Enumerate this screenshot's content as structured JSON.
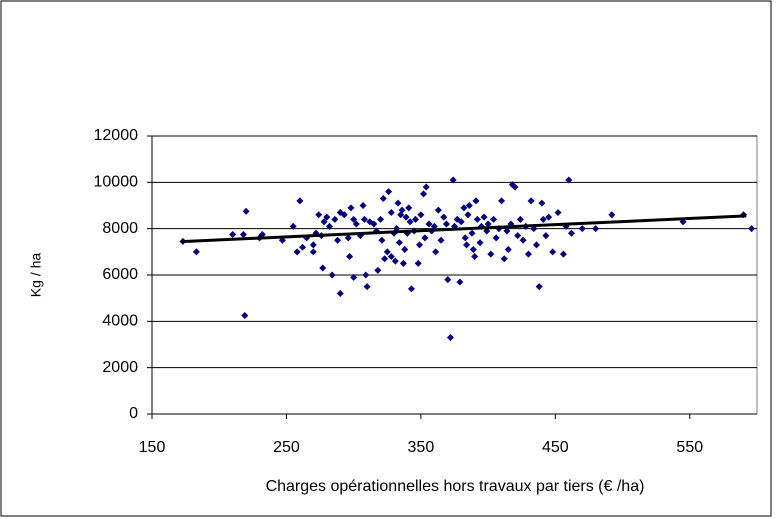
{
  "chart_data": {
    "type": "scatter",
    "xlabel": "Charges opérationnelles hors travaux par tiers (€ /ha)",
    "ylabel": "Kg / ha",
    "xlim": [
      150,
      600
    ],
    "xticks": [
      150,
      250,
      350,
      450,
      550
    ],
    "ylim": [
      0,
      12000
    ],
    "yticks": [
      0,
      2000,
      4000,
      6000,
      8000,
      10000,
      12000
    ],
    "grid": true,
    "color": "#000080",
    "x": [
      173,
      183,
      210,
      218,
      220,
      219,
      230,
      232,
      247,
      255,
      258,
      260,
      262,
      265,
      270,
      270,
      272,
      274,
      276,
      277,
      278,
      280,
      282,
      284,
      286,
      288,
      290,
      290,
      293,
      296,
      297,
      298,
      300,
      300,
      302,
      305,
      307,
      308,
      309,
      310,
      312,
      315,
      317,
      318,
      320,
      321,
      322,
      323,
      325,
      326,
      328,
      328,
      330,
      331,
      332,
      333,
      334,
      335,
      336,
      337,
      338,
      339,
      340,
      341,
      342,
      343,
      345,
      346,
      348,
      349,
      350,
      352,
      353,
      354,
      356,
      358,
      360,
      361,
      363,
      365,
      367,
      369,
      370,
      372,
      374,
      375,
      377,
      379,
      380,
      382,
      383,
      384,
      385,
      386,
      388,
      389,
      390,
      391,
      392,
      394,
      395,
      397,
      399,
      400,
      402,
      404,
      406,
      408,
      410,
      412,
      414,
      415,
      417,
      418,
      420,
      422,
      424,
      426,
      428,
      430,
      432,
      434,
      436,
      438,
      440,
      441,
      443,
      445,
      448,
      452,
      456,
      458,
      460,
      462,
      470,
      480,
      492,
      545,
      590,
      596
    ],
    "values": [
      7450,
      7000,
      7750,
      7750,
      8750,
      4250,
      7600,
      7750,
      7500,
      8100,
      7000,
      9200,
      7200,
      7600,
      7300,
      7000,
      7800,
      8600,
      7700,
      6300,
      8300,
      8500,
      8100,
      6000,
      8400,
      7500,
      8700,
      5200,
      8600,
      7600,
      6800,
      8900,
      8400,
      5900,
      8200,
      7700,
      9000,
      8400,
      6000,
      5500,
      8300,
      8200,
      7900,
      6200,
      8400,
      7500,
      9300,
      6700,
      7000,
      9600,
      8700,
      6800,
      7800,
      6600,
      8000,
      9100,
      7400,
      8600,
      8800,
      6500,
      7100,
      8500,
      7800,
      8900,
      8300,
      5400,
      7900,
      8400,
      6500,
      7300,
      8600,
      9500,
      7600,
      9800,
      8200,
      7900,
      8100,
      7000,
      8800,
      7500,
      8500,
      8200,
      5800,
      3300,
      10100,
      8100,
      8400,
      5700,
      8300,
      8900,
      7600,
      7300,
      8600,
      9000,
      7800,
      7100,
      6800,
      9200,
      8400,
      7400,
      8100,
      8500,
      7900,
      8200,
      6900,
      8400,
      7600,
      8000,
      9200,
      6700,
      7900,
      7100,
      8200,
      9900,
      9800,
      7700,
      8400,
      7500,
      8100,
      6900,
      9200,
      8000,
      7300,
      5500,
      9100,
      8400,
      7700,
      8500,
      7000,
      8700,
      6900,
      8100,
      10100,
      7800,
      8000,
      8000,
      8600,
      8300,
      8600,
      8000
    ],
    "trendline": {
      "x": [
        172,
        592
      ],
      "values": [
        7440,
        8550
      ]
    }
  }
}
